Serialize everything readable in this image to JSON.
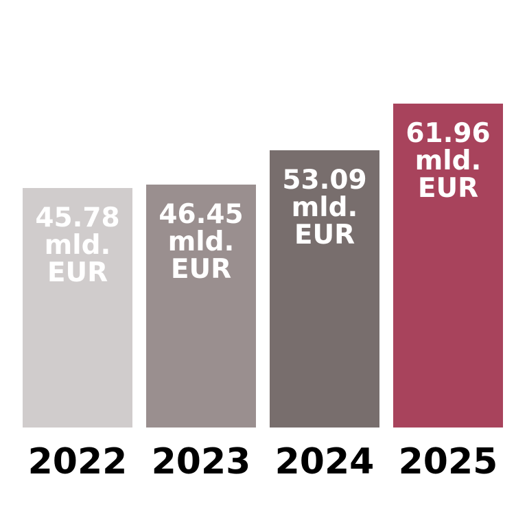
{
  "chart_data": {
    "type": "bar",
    "categories": [
      "2022",
      "2023",
      "2024",
      "2025"
    ],
    "values": [
      45.78,
      46.45,
      53.09,
      61.96
    ],
    "value_labels": [
      "45.78 mld. EUR",
      "46.45 mld. EUR",
      "53.09 mld. EUR",
      "61.96 mld. EUR"
    ],
    "colors": [
      "#d0cccc",
      "#9a8f8f",
      "#786e6d",
      "#a8435c"
    ],
    "ylim": [
      0,
      62
    ]
  }
}
